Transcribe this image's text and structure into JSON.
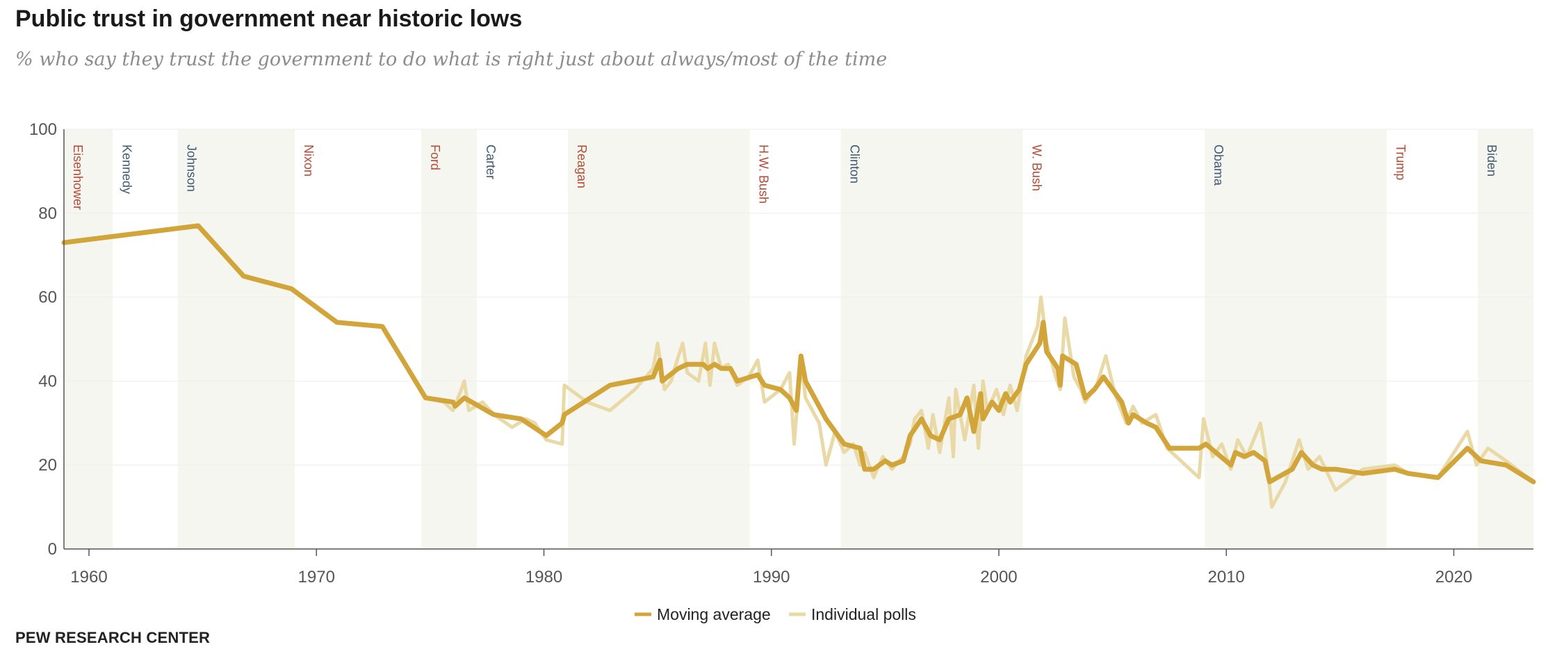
{
  "header": {
    "title": "Public trust in government near historic lows",
    "subtitle": "% who say they trust the government to do what is right just about always/most of the time"
  },
  "footer": {
    "source": "PEW RESEARCH CENTER"
  },
  "colors": {
    "moving_average": "#d1a53a",
    "individual_polls": "#e9d9a6",
    "republican": "#b34a35",
    "democrat": "#3e5a73",
    "shade": "#f6f6f1",
    "axis": "#555555",
    "grid": "#eeeeee"
  },
  "chart_data": {
    "type": "line",
    "title": "Public trust in government near historic lows",
    "subtitle": "% who say they trust the government to do what is right just about always/most of the time",
    "xlabel": "",
    "ylabel": "",
    "xlim": [
      1958.9,
      2023.5
    ],
    "ylim": [
      0,
      100
    ],
    "x_ticks": [
      1960,
      1970,
      1980,
      1990,
      2000,
      2010,
      2020
    ],
    "y_ticks": [
      0,
      20,
      40,
      60,
      80,
      100
    ],
    "grid": true,
    "legend": {
      "placement": "bottom-center",
      "entries": [
        "Moving average",
        "Individual polls"
      ]
    },
    "presidents": [
      {
        "name": "Eisenhower",
        "start": 1958.9,
        "end": 1961.05,
        "party": "R",
        "shaded": true
      },
      {
        "name": "Kennedy",
        "start": 1961.05,
        "end": 1963.9,
        "party": "D",
        "shaded": false
      },
      {
        "name": "Johnson",
        "start": 1963.9,
        "end": 1969.05,
        "party": "D",
        "shaded": true
      },
      {
        "name": "Nixon",
        "start": 1969.05,
        "end": 1974.6,
        "party": "R",
        "shaded": false
      },
      {
        "name": "Ford",
        "start": 1974.6,
        "end": 1977.05,
        "party": "R",
        "shaded": true
      },
      {
        "name": "Carter",
        "start": 1977.05,
        "end": 1981.05,
        "party": "D",
        "shaded": false
      },
      {
        "name": "Reagan",
        "start": 1981.05,
        "end": 1989.05,
        "party": "R",
        "shaded": true
      },
      {
        "name": "H.W. Bush",
        "start": 1989.05,
        "end": 1993.05,
        "party": "R",
        "shaded": false
      },
      {
        "name": "Clinton",
        "start": 1993.05,
        "end": 2001.05,
        "party": "D",
        "shaded": true
      },
      {
        "name": "W. Bush",
        "start": 2001.05,
        "end": 2009.05,
        "party": "R",
        "shaded": false
      },
      {
        "name": "Obama",
        "start": 2009.05,
        "end": 2017.05,
        "party": "D",
        "shaded": true
      },
      {
        "name": "Trump",
        "start": 2017.05,
        "end": 2021.05,
        "party": "R",
        "shaded": false
      },
      {
        "name": "Biden",
        "start": 2021.05,
        "end": 2023.5,
        "party": "D",
        "shaded": true
      }
    ],
    "series": [
      {
        "name": "Moving average",
        "points": [
          [
            1958.9,
            73
          ],
          [
            1964.8,
            77
          ],
          [
            1966.8,
            65
          ],
          [
            1968.9,
            62
          ],
          [
            1970.9,
            54
          ],
          [
            1972.9,
            53
          ],
          [
            1974.8,
            36
          ],
          [
            1976.0,
            35
          ],
          [
            1976.1,
            34
          ],
          [
            1976.5,
            36
          ],
          [
            1977.8,
            32
          ],
          [
            1979.0,
            31
          ],
          [
            1980.1,
            27
          ],
          [
            1980.8,
            30
          ],
          [
            1980.9,
            32
          ],
          [
            1982.9,
            39
          ],
          [
            1984.8,
            41
          ],
          [
            1985.1,
            45
          ],
          [
            1985.2,
            40
          ],
          [
            1985.9,
            43
          ],
          [
            1986.3,
            44
          ],
          [
            1987.0,
            44
          ],
          [
            1987.2,
            43
          ],
          [
            1987.5,
            44
          ],
          [
            1987.8,
            43
          ],
          [
            1988.2,
            43
          ],
          [
            1988.5,
            40
          ],
          [
            1989.4,
            41.5
          ],
          [
            1989.7,
            39
          ],
          [
            1990.4,
            38
          ],
          [
            1990.8,
            36
          ],
          [
            1991.1,
            33
          ],
          [
            1991.3,
            46
          ],
          [
            1991.5,
            40
          ],
          [
            1992.4,
            31
          ],
          [
            1993.2,
            25
          ],
          [
            1993.9,
            24
          ],
          [
            1994.1,
            19
          ],
          [
            1994.5,
            19
          ],
          [
            1995.0,
            21
          ],
          [
            1995.3,
            20
          ],
          [
            1995.8,
            21
          ],
          [
            1996.1,
            27
          ],
          [
            1996.6,
            31
          ],
          [
            1997.0,
            27
          ],
          [
            1997.4,
            26
          ],
          [
            1997.8,
            31
          ],
          [
            1998.3,
            32
          ],
          [
            1998.6,
            36
          ],
          [
            1998.9,
            28
          ],
          [
            1999.2,
            37
          ],
          [
            1999.3,
            31
          ],
          [
            1999.7,
            35
          ],
          [
            2000.0,
            33
          ],
          [
            2000.3,
            37
          ],
          [
            2000.5,
            35
          ],
          [
            2000.9,
            38
          ],
          [
            2001.2,
            44
          ],
          [
            2001.8,
            49
          ],
          [
            2001.95,
            54
          ],
          [
            2002.1,
            47
          ],
          [
            2002.6,
            43
          ],
          [
            2002.7,
            39
          ],
          [
            2002.8,
            46
          ],
          [
            2003.4,
            44
          ],
          [
            2003.8,
            36
          ],
          [
            2004.2,
            38
          ],
          [
            2004.6,
            41
          ],
          [
            2005.4,
            35
          ],
          [
            2005.7,
            30
          ],
          [
            2005.9,
            32
          ],
          [
            2006.5,
            30
          ],
          [
            2006.9,
            29
          ],
          [
            2007.5,
            24
          ],
          [
            2008.8,
            24
          ],
          [
            2009.1,
            25
          ],
          [
            2010.2,
            20
          ],
          [
            2010.4,
            23
          ],
          [
            2010.8,
            22
          ],
          [
            2011.2,
            23
          ],
          [
            2011.7,
            21
          ],
          [
            2011.9,
            16
          ],
          [
            2012.9,
            19
          ],
          [
            2013.3,
            23
          ],
          [
            2013.8,
            20
          ],
          [
            2014.2,
            19
          ],
          [
            2014.8,
            19
          ],
          [
            2016.0,
            18
          ],
          [
            2017.4,
            19
          ],
          [
            2018.0,
            18
          ],
          [
            2019.3,
            17
          ],
          [
            2020.6,
            24
          ],
          [
            2021.2,
            21
          ],
          [
            2022.3,
            20
          ],
          [
            2023.5,
            16
          ]
        ]
      },
      {
        "name": "Individual polls",
        "points": [
          [
            1958.9,
            73
          ],
          [
            1964.8,
            77
          ],
          [
            1966.8,
            65
          ],
          [
            1968.9,
            62
          ],
          [
            1970.9,
            54
          ],
          [
            1972.9,
            53
          ],
          [
            1974.8,
            36
          ],
          [
            1975.6,
            35
          ],
          [
            1976.0,
            33
          ],
          [
            1976.3,
            37
          ],
          [
            1976.5,
            40
          ],
          [
            1976.7,
            33
          ],
          [
            1977.3,
            35
          ],
          [
            1977.8,
            32
          ],
          [
            1978.6,
            29
          ],
          [
            1979.2,
            31
          ],
          [
            1979.6,
            30
          ],
          [
            1980.1,
            26
          ],
          [
            1980.8,
            25
          ],
          [
            1980.9,
            39
          ],
          [
            1981.9,
            35
          ],
          [
            1982.9,
            33
          ],
          [
            1984.0,
            38
          ],
          [
            1984.8,
            43
          ],
          [
            1985.0,
            49
          ],
          [
            1985.3,
            38
          ],
          [
            1985.6,
            40
          ],
          [
            1985.8,
            44
          ],
          [
            1986.1,
            49
          ],
          [
            1986.3,
            42
          ],
          [
            1986.8,
            40
          ],
          [
            1987.1,
            49
          ],
          [
            1987.3,
            39
          ],
          [
            1987.5,
            49
          ],
          [
            1987.8,
            43
          ],
          [
            1988.1,
            44
          ],
          [
            1988.5,
            39
          ],
          [
            1989.0,
            41
          ],
          [
            1989.4,
            45
          ],
          [
            1989.7,
            35
          ],
          [
            1990.4,
            38
          ],
          [
            1990.8,
            42
          ],
          [
            1991.0,
            25
          ],
          [
            1991.3,
            45
          ],
          [
            1991.5,
            36
          ],
          [
            1992.1,
            30
          ],
          [
            1992.4,
            20
          ],
          [
            1992.8,
            28
          ],
          [
            1993.2,
            23
          ],
          [
            1993.6,
            25
          ],
          [
            1993.9,
            20
          ],
          [
            1994.1,
            23
          ],
          [
            1994.5,
            17
          ],
          [
            1994.9,
            22
          ],
          [
            1995.3,
            19
          ],
          [
            1995.8,
            22
          ],
          [
            1996.1,
            25
          ],
          [
            1996.3,
            31
          ],
          [
            1996.6,
            33
          ],
          [
            1996.9,
            24
          ],
          [
            1997.1,
            32
          ],
          [
            1997.4,
            23
          ],
          [
            1997.8,
            36
          ],
          [
            1998.0,
            22
          ],
          [
            1998.1,
            38
          ],
          [
            1998.5,
            26
          ],
          [
            1998.9,
            39
          ],
          [
            1999.1,
            24
          ],
          [
            1999.3,
            40
          ],
          [
            1999.5,
            33
          ],
          [
            1999.9,
            38
          ],
          [
            2000.2,
            32
          ],
          [
            2000.5,
            39
          ],
          [
            2000.8,
            33
          ],
          [
            2001.2,
            46
          ],
          [
            2001.7,
            53
          ],
          [
            2001.85,
            60
          ],
          [
            2002.1,
            49
          ],
          [
            2002.5,
            41
          ],
          [
            2002.7,
            38
          ],
          [
            2002.9,
            55
          ],
          [
            2003.3,
            41
          ],
          [
            2003.6,
            38
          ],
          [
            2003.8,
            35
          ],
          [
            2004.3,
            39
          ],
          [
            2004.7,
            46
          ],
          [
            2005.1,
            37
          ],
          [
            2005.6,
            30
          ],
          [
            2005.9,
            34
          ],
          [
            2006.3,
            30
          ],
          [
            2006.9,
            32
          ],
          [
            2007.4,
            24
          ],
          [
            2008.8,
            17
          ],
          [
            2009.0,
            31
          ],
          [
            2009.4,
            22
          ],
          [
            2009.8,
            25
          ],
          [
            2010.2,
            19
          ],
          [
            2010.5,
            26
          ],
          [
            2010.9,
            22
          ],
          [
            2011.5,
            30
          ],
          [
            2011.8,
            20
          ],
          [
            2012.0,
            10
          ],
          [
            2012.6,
            16
          ],
          [
            2013.2,
            26
          ],
          [
            2013.6,
            19
          ],
          [
            2014.1,
            22
          ],
          [
            2014.8,
            14
          ],
          [
            2016.0,
            19
          ],
          [
            2017.4,
            20
          ],
          [
            2018.0,
            18
          ],
          [
            2019.3,
            17
          ],
          [
            2020.6,
            28
          ],
          [
            2021.0,
            20
          ],
          [
            2021.5,
            24
          ],
          [
            2022.3,
            21
          ],
          [
            2023.5,
            16
          ]
        ]
      }
    ]
  }
}
